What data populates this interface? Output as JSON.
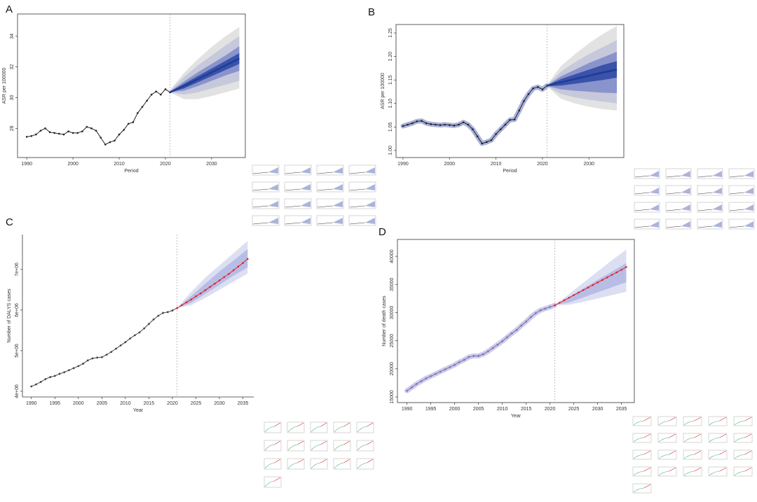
{
  "chart_data": [
    {
      "type": "fan",
      "label": "A",
      "x_label": "Period",
      "y_label": "ASR per 100000",
      "xlim": [
        1988,
        2037.3
      ],
      "ylim": [
        26.1,
        35.45
      ],
      "xticks": [
        1990,
        2000,
        2010,
        2020,
        2030
      ],
      "yticks": [
        28,
        30,
        32,
        34
      ],
      "forecast_start": 2021,
      "color": "#222222",
      "x": [
        1990,
        1991,
        1992,
        1993,
        1994,
        1995,
        1996,
        1997,
        1998,
        1999,
        2000,
        2001,
        2002,
        2003,
        2004,
        2005,
        2006,
        2007,
        2008,
        2009,
        2010,
        2011,
        2012,
        2013,
        2014,
        2015,
        2016,
        2017,
        2018,
        2019,
        2020,
        2021
      ],
      "values": [
        27.45,
        27.5,
        27.6,
        27.85,
        28.0,
        27.75,
        27.7,
        27.65,
        27.6,
        27.8,
        27.7,
        27.7,
        27.8,
        28.1,
        28.0,
        27.85,
        27.4,
        26.95,
        27.1,
        27.2,
        27.6,
        27.9,
        28.3,
        28.4,
        29.0,
        29.4,
        29.8,
        30.2,
        30.4,
        30.2,
        30.55,
        30.35
      ],
      "forecast": {
        "color": "#1d3c9a",
        "x": [
          2021,
          2024,
          2027,
          2030,
          2033,
          2036
        ],
        "values": [
          30.35,
          30.75,
          31.2,
          31.65,
          32.1,
          32.55
        ]
      },
      "bands": [
        {
          "color": "#e2e2e2",
          "x": [
            2021,
            2024,
            2027,
            2030,
            2033,
            2036
          ],
          "lower": [
            30.35,
            29.9,
            29.9,
            30.1,
            30.35,
            30.6
          ],
          "upper": [
            30.5,
            31.6,
            32.5,
            33.3,
            34.0,
            34.6
          ]
        },
        {
          "color": "#c6c9db",
          "x": [
            2021,
            2024,
            2027,
            2030,
            2033,
            2036
          ],
          "lower": [
            30.35,
            30.2,
            30.35,
            30.6,
            30.85,
            31.1
          ],
          "upper": [
            30.45,
            31.35,
            32.1,
            32.75,
            33.4,
            34.0
          ]
        },
        {
          "color": "#8993cc",
          "x": [
            2021,
            2024,
            2027,
            2030,
            2033,
            2036
          ],
          "lower": [
            30.35,
            30.45,
            30.75,
            31.1,
            31.45,
            31.75
          ],
          "upper": [
            30.4,
            31.05,
            31.65,
            32.2,
            32.75,
            33.35
          ]
        },
        {
          "color": "#3a52a8",
          "x": [
            2021,
            2024,
            2027,
            2030,
            2033,
            2036
          ],
          "lower": [
            30.35,
            30.6,
            31.0,
            31.4,
            31.8,
            32.2
          ],
          "upper": [
            30.4,
            30.9,
            31.4,
            31.9,
            32.4,
            32.9
          ]
        }
      ]
    },
    {
      "type": "fan",
      "label": "B",
      "x_label": "Period",
      "y_label": "ASR per 100000",
      "xlim": [
        1988.5,
        2037.5
      ],
      "ylim": [
        0.985,
        1.268
      ],
      "xticks": [
        1990,
        2000,
        2010,
        2020,
        2030
      ],
      "yticks": [
        {
          "value": 1.0,
          "label": "1.00"
        },
        {
          "value": 1.05,
          "label": "1.05"
        },
        {
          "value": 1.1,
          "label": "1.10"
        },
        {
          "value": 1.15,
          "label": "1.15"
        },
        {
          "value": 1.2,
          "label": "1.20"
        },
        {
          "value": 1.25,
          "label": "1.25"
        }
      ],
      "forecast_start": 2021,
      "color": "#222222",
      "halo": "#aab3dd",
      "x": [
        1990,
        1991,
        1992,
        1993,
        1994,
        1995,
        1996,
        1997,
        1998,
        1999,
        2000,
        2001,
        2002,
        2003,
        2004,
        2005,
        2006,
        2007,
        2008,
        2009,
        2010,
        2011,
        2012,
        2013,
        2014,
        2015,
        2016,
        2017,
        2018,
        2019,
        2020,
        2021
      ],
      "values": [
        1.052,
        1.055,
        1.058,
        1.062,
        1.063,
        1.058,
        1.056,
        1.055,
        1.054,
        1.055,
        1.054,
        1.053,
        1.055,
        1.06,
        1.055,
        1.045,
        1.03,
        1.015,
        1.018,
        1.022,
        1.035,
        1.045,
        1.055,
        1.065,
        1.066,
        1.085,
        1.105,
        1.12,
        1.132,
        1.135,
        1.13,
        1.138
      ],
      "forecast": {
        "color": "#1d3c9a",
        "x": [
          2021,
          2024,
          2027,
          2030,
          2033,
          2036
        ],
        "values": [
          1.138,
          1.145,
          1.152,
          1.159,
          1.166,
          1.172
        ]
      },
      "bands": [
        {
          "color": "#e2e2e2",
          "x": [
            2021,
            2024,
            2027,
            2030,
            2033,
            2036
          ],
          "lower": [
            1.136,
            1.11,
            1.1,
            1.093,
            1.088,
            1.085
          ],
          "upper": [
            1.14,
            1.18,
            1.205,
            1.228,
            1.248,
            1.265
          ]
        },
        {
          "color": "#c6c9db",
          "x": [
            2021,
            2024,
            2027,
            2030,
            2033,
            2036
          ],
          "lower": [
            1.137,
            1.12,
            1.113,
            1.108,
            1.104,
            1.1
          ],
          "upper": [
            1.139,
            1.168,
            1.188,
            1.205,
            1.22,
            1.235
          ]
        },
        {
          "color": "#8993cc",
          "x": [
            2021,
            2024,
            2027,
            2030,
            2033,
            2036
          ],
          "lower": [
            1.137,
            1.13,
            1.127,
            1.125,
            1.123,
            1.122
          ],
          "upper": [
            1.139,
            1.158,
            1.172,
            1.186,
            1.198,
            1.21
          ]
        },
        {
          "color": "#3a52a8",
          "x": [
            2021,
            2024,
            2027,
            2030,
            2033,
            2036
          ],
          "lower": [
            1.137,
            1.138,
            1.142,
            1.146,
            1.15,
            1.155
          ],
          "upper": [
            1.139,
            1.152,
            1.162,
            1.172,
            1.182,
            1.19
          ]
        }
      ]
    },
    {
      "type": "fan",
      "label": "C",
      "x_label": "Year",
      "y_label": "Number of DALYS cases",
      "xlim": [
        1988.1,
        2037.3
      ],
      "ylim": [
        3860000,
        7860000
      ],
      "xticks": [
        1990,
        1995,
        2000,
        2005,
        2010,
        2015,
        2020,
        2025,
        2030,
        2035
      ],
      "yticks": [
        {
          "value": 4000000,
          "label": "4e+06"
        },
        {
          "value": 5000000,
          "label": "5e+06"
        },
        {
          "value": 6000000,
          "label": "6e+06"
        },
        {
          "value": 7000000,
          "label": "7e+06"
        }
      ],
      "forecast_start": 2021,
      "color": "#444444",
      "x": [
        1990,
        1991,
        1992,
        1993,
        1994,
        1995,
        1996,
        1997,
        1998,
        1999,
        2000,
        2001,
        2002,
        2003,
        2004,
        2005,
        2006,
        2007,
        2008,
        2009,
        2010,
        2011,
        2012,
        2013,
        2014,
        2015,
        2016,
        2017,
        2018,
        2019,
        2020,
        2021
      ],
      "values": [
        4120000,
        4170000,
        4230000,
        4300000,
        4350000,
        4380000,
        4430000,
        4470000,
        4520000,
        4570000,
        4620000,
        4680000,
        4760000,
        4810000,
        4830000,
        4840000,
        4900000,
        4970000,
        5050000,
        5130000,
        5210000,
        5300000,
        5380000,
        5450000,
        5550000,
        5660000,
        5770000,
        5860000,
        5930000,
        5950000,
        5990000,
        6050000
      ],
      "forecast": {
        "color": "#e02020",
        "x": [
          2021,
          2022,
          2023,
          2024,
          2025,
          2026,
          2027,
          2028,
          2029,
          2030,
          2031,
          2032,
          2033,
          2034,
          2035,
          2036
        ],
        "values": [
          6050000,
          6120000,
          6190000,
          6260000,
          6340000,
          6410000,
          6490000,
          6570000,
          6650000,
          6730000,
          6810000,
          6890000,
          6980000,
          7070000,
          7160000,
          7260000
        ]
      },
      "bands": [
        {
          "color": "#dcdff2",
          "x": [
            2021,
            2024,
            2027,
            2030,
            2033,
            2036
          ],
          "lower": [
            6050000,
            6120000,
            6300000,
            6500000,
            6700000,
            6900000
          ],
          "upper": [
            6050000,
            6450000,
            6800000,
            7100000,
            7400000,
            7700000
          ]
        },
        {
          "color": "#b8bde6",
          "x": [
            2021,
            2024,
            2027,
            2030,
            2033,
            2036
          ],
          "lower": [
            6050000,
            6180000,
            6400000,
            6620000,
            6850000,
            7050000
          ],
          "upper": [
            6050000,
            6350000,
            6650000,
            6950000,
            7220000,
            7500000
          ]
        }
      ]
    },
    {
      "type": "fan",
      "label": "D",
      "x_label": "Year",
      "y_label": "Number of death cases",
      "xlim": [
        1988,
        2037.7
      ],
      "ylim": [
        14000,
        43000
      ],
      "xticks": [
        1990,
        1995,
        2000,
        2005,
        2010,
        2015,
        2020,
        2025,
        2030,
        2035
      ],
      "yticks": [
        15000,
        20000,
        25000,
        30000,
        35000,
        40000
      ],
      "forecast_start": 2021,
      "color": "#7a6fb0",
      "halo": "#cccbeb",
      "x": [
        1990,
        1991,
        1992,
        1993,
        1994,
        1995,
        1996,
        1997,
        1998,
        1999,
        2000,
        2001,
        2002,
        2003,
        2004,
        2005,
        2006,
        2007,
        2008,
        2009,
        2010,
        2011,
        2012,
        2013,
        2014,
        2015,
        2016,
        2017,
        2018,
        2019,
        2020,
        2021
      ],
      "values": [
        16100,
        16700,
        17300,
        17800,
        18300,
        18700,
        19100,
        19500,
        19900,
        20300,
        20700,
        21200,
        21600,
        22100,
        22300,
        22300,
        22600,
        23100,
        23700,
        24300,
        24900,
        25600,
        26300,
        26900,
        27700,
        28400,
        29200,
        29900,
        30400,
        30700,
        31000,
        31300
      ],
      "forecast": {
        "color": "#e02020",
        "x": [
          2021,
          2022,
          2023,
          2024,
          2025,
          2026,
          2027,
          2028,
          2029,
          2030,
          2031,
          2032,
          2033,
          2034,
          2035,
          2036
        ],
        "values": [
          31300,
          31750,
          32200,
          32650,
          33100,
          33550,
          34000,
          34450,
          34900,
          35350,
          35800,
          36250,
          36700,
          37150,
          37600,
          38100
        ]
      },
      "bands": [
        {
          "color": "#dcdff2",
          "x": [
            2021,
            2024,
            2027,
            2030,
            2033,
            2036
          ],
          "lower": [
            31300,
            31400,
            31900,
            32500,
            33100,
            33700
          ],
          "upper": [
            31300,
            33300,
            35300,
            37300,
            39300,
            41200
          ]
        },
        {
          "color": "#b8bde6",
          "x": [
            2021,
            2024,
            2027,
            2030,
            2033,
            2036
          ],
          "lower": [
            31300,
            31800,
            32700,
            33600,
            34500,
            35400
          ],
          "upper": [
            31300,
            32800,
            34300,
            35800,
            37300,
            38800
          ]
        }
      ]
    }
  ]
}
